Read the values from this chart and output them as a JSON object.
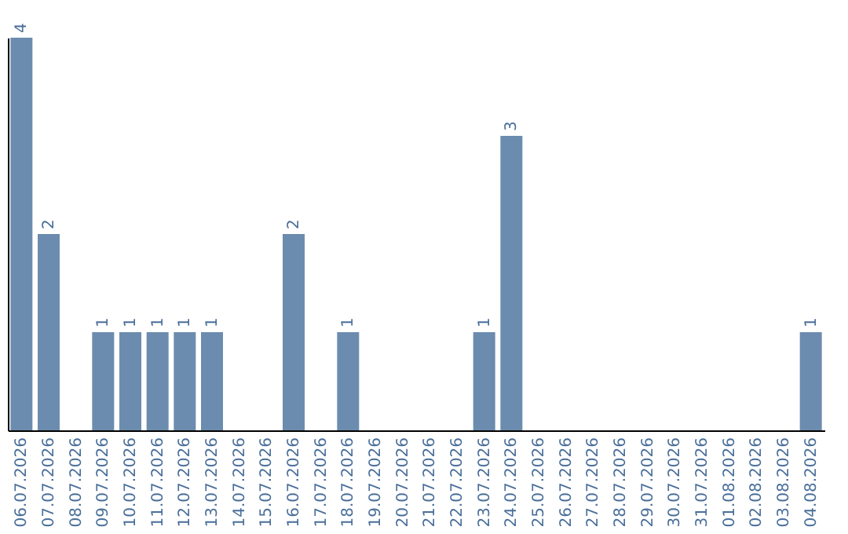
{
  "chart_data": {
    "type": "bar",
    "categories": [
      "06.07.2026",
      "07.07.2026",
      "08.07.2026",
      "09.07.2026",
      "10.07.2026",
      "11.07.2026",
      "12.07.2026",
      "13.07.2026",
      "14.07.2026",
      "15.07.2026",
      "16.07.2026",
      "17.07.2026",
      "18.07.2026",
      "19.07.2026",
      "20.07.2026",
      "21.07.2026",
      "22.07.2026",
      "23.07.2026",
      "24.07.2026",
      "25.07.2026",
      "26.07.2026",
      "27.07.2026",
      "28.07.2026",
      "29.07.2026",
      "30.07.2026",
      "31.07.2026",
      "01.08.2026",
      "02.08.2026",
      "03.08.2026",
      "04.08.2026"
    ],
    "values": [
      4,
      2,
      0,
      1,
      1,
      1,
      1,
      1,
      0,
      0,
      2,
      0,
      1,
      0,
      0,
      0,
      0,
      1,
      3,
      0,
      0,
      0,
      0,
      0,
      0,
      0,
      0,
      0,
      0,
      1
    ],
    "value_labels": [
      "4",
      "2",
      null,
      "1",
      "1",
      "1",
      "1",
      "1",
      null,
      null,
      "2",
      null,
      "1",
      null,
      null,
      null,
      null,
      "1",
      "3",
      null,
      null,
      null,
      null,
      null,
      null,
      null,
      null,
      null,
      null,
      "1"
    ],
    "color": "#6b8cae",
    "tick_labels": "x",
    "grid": false
  }
}
